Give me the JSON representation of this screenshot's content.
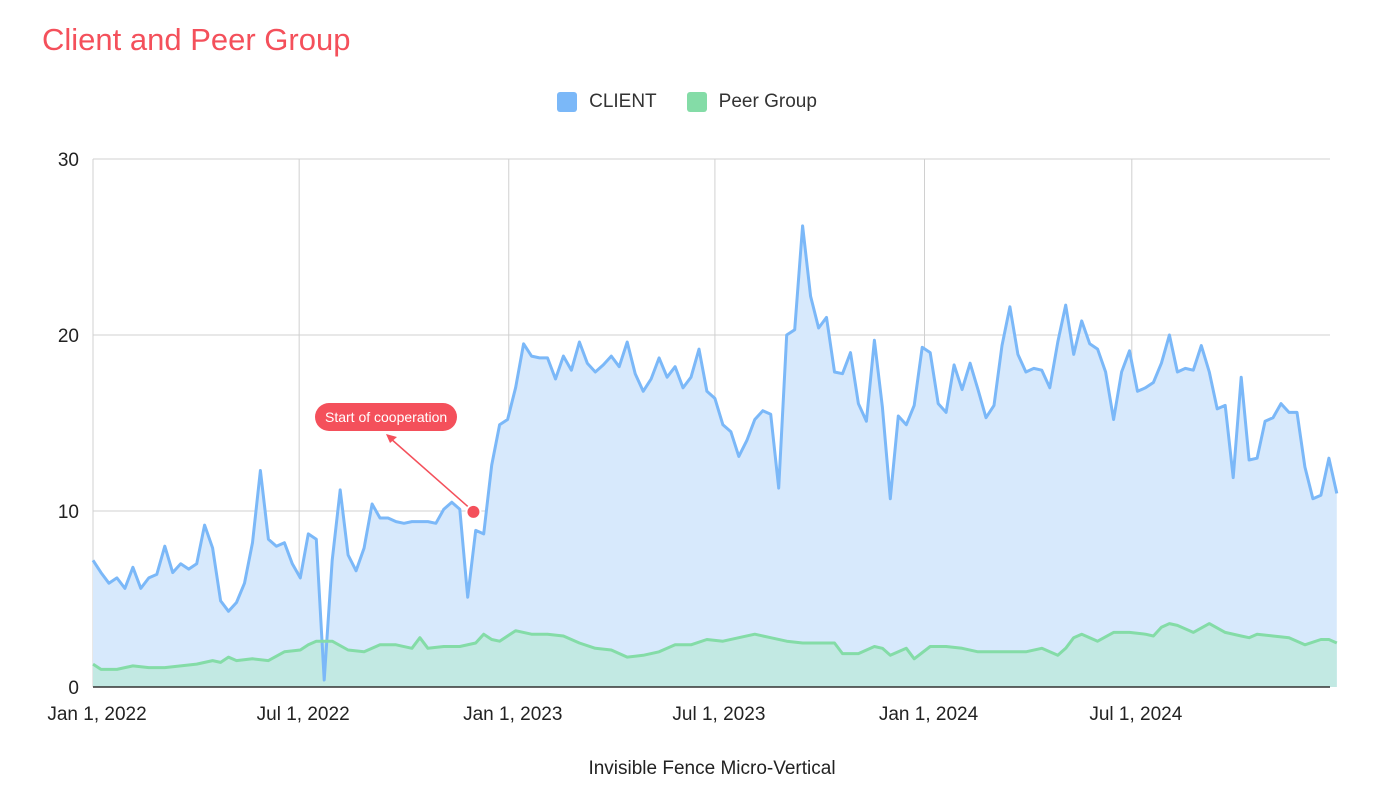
{
  "chart_data": {
    "type": "area",
    "title": "Client and Peer Group",
    "xlabel": "Invisible Fence Micro-Vertical",
    "ylabel": "",
    "ylim": [
      0,
      30
    ],
    "yticks": [
      0,
      10,
      20,
      30
    ],
    "x_range": [
      "2022-01-01",
      "2024-12-22"
    ],
    "xticks": [
      {
        "date": "2022-01-01",
        "label": "Jan 1, 2022"
      },
      {
        "date": "2022-07-01",
        "label": "Jul 1, 2022"
      },
      {
        "date": "2023-01-01",
        "label": "Jan 1, 2023"
      },
      {
        "date": "2023-07-01",
        "label": "Jul 1, 2023"
      },
      {
        "date": "2024-01-01",
        "label": "Jan 1, 2024"
      },
      {
        "date": "2024-07-01",
        "label": "Jul 1, 2024"
      }
    ],
    "grid": true,
    "legend_position": "top-center",
    "series": [
      {
        "name": "CLIENT",
        "color": "#7bb8f8",
        "fill": "#d7e9fc",
        "points": [
          [
            "2022-01-01",
            7.2
          ],
          [
            "2022-01-08",
            6.5
          ],
          [
            "2022-01-15",
            5.9
          ],
          [
            "2022-01-22",
            6.2
          ],
          [
            "2022-01-29",
            5.6
          ],
          [
            "2022-02-05",
            6.8
          ],
          [
            "2022-02-12",
            5.6
          ],
          [
            "2022-02-19",
            6.2
          ],
          [
            "2022-02-26",
            6.4
          ],
          [
            "2022-03-05",
            8.0
          ],
          [
            "2022-03-12",
            6.5
          ],
          [
            "2022-03-19",
            7.0
          ],
          [
            "2022-03-26",
            6.7
          ],
          [
            "2022-04-02",
            7.0
          ],
          [
            "2022-04-09",
            9.2
          ],
          [
            "2022-04-16",
            7.9
          ],
          [
            "2022-04-23",
            4.9
          ],
          [
            "2022-04-30",
            4.3
          ],
          [
            "2022-05-07",
            4.8
          ],
          [
            "2022-05-14",
            5.9
          ],
          [
            "2022-05-21",
            8.2
          ],
          [
            "2022-05-28",
            12.3
          ],
          [
            "2022-06-04",
            8.4
          ],
          [
            "2022-06-11",
            8.0
          ],
          [
            "2022-06-18",
            8.2
          ],
          [
            "2022-06-25",
            7.0
          ],
          [
            "2022-07-02",
            6.2
          ],
          [
            "2022-07-09",
            8.7
          ],
          [
            "2022-07-16",
            8.4
          ],
          [
            "2022-07-23",
            0.4
          ],
          [
            "2022-07-30",
            7.2
          ],
          [
            "2022-08-06",
            11.2
          ],
          [
            "2022-08-13",
            7.5
          ],
          [
            "2022-08-20",
            6.6
          ],
          [
            "2022-08-27",
            7.9
          ],
          [
            "2022-09-03",
            10.4
          ],
          [
            "2022-09-10",
            9.6
          ],
          [
            "2022-09-17",
            9.6
          ],
          [
            "2022-09-24",
            9.4
          ],
          [
            "2022-10-01",
            9.3
          ],
          [
            "2022-10-08",
            9.4
          ],
          [
            "2022-10-15",
            9.4
          ],
          [
            "2022-10-22",
            9.4
          ],
          [
            "2022-10-29",
            9.3
          ],
          [
            "2022-11-05",
            10.1
          ],
          [
            "2022-11-12",
            10.5
          ],
          [
            "2022-11-19",
            10.1
          ],
          [
            "2022-11-26",
            5.1
          ],
          [
            "2022-12-03",
            8.9
          ],
          [
            "2022-12-10",
            8.7
          ],
          [
            "2022-12-17",
            12.6
          ],
          [
            "2022-12-24",
            14.9
          ],
          [
            "2022-12-31",
            15.2
          ],
          [
            "2023-01-07",
            17.0
          ],
          [
            "2023-01-14",
            19.5
          ],
          [
            "2023-01-21",
            18.8
          ],
          [
            "2023-01-28",
            18.7
          ],
          [
            "2023-02-04",
            18.7
          ],
          [
            "2023-02-11",
            17.5
          ],
          [
            "2023-02-18",
            18.8
          ],
          [
            "2023-02-25",
            18.0
          ],
          [
            "2023-03-04",
            19.6
          ],
          [
            "2023-03-11",
            18.4
          ],
          [
            "2023-03-18",
            17.9
          ],
          [
            "2023-03-25",
            18.3
          ],
          [
            "2023-04-01",
            18.8
          ],
          [
            "2023-04-08",
            18.2
          ],
          [
            "2023-04-15",
            19.6
          ],
          [
            "2023-04-22",
            17.8
          ],
          [
            "2023-04-29",
            16.8
          ],
          [
            "2023-05-06",
            17.5
          ],
          [
            "2023-05-13",
            18.7
          ],
          [
            "2023-05-20",
            17.6
          ],
          [
            "2023-05-27",
            18.2
          ],
          [
            "2023-06-03",
            17.0
          ],
          [
            "2023-06-10",
            17.6
          ],
          [
            "2023-06-17",
            19.2
          ],
          [
            "2023-06-24",
            16.8
          ],
          [
            "2023-07-01",
            16.4
          ],
          [
            "2023-07-08",
            14.9
          ],
          [
            "2023-07-15",
            14.5
          ],
          [
            "2023-07-22",
            13.1
          ],
          [
            "2023-07-29",
            14.0
          ],
          [
            "2023-08-05",
            15.2
          ],
          [
            "2023-08-12",
            15.7
          ],
          [
            "2023-08-19",
            15.5
          ],
          [
            "2023-08-26",
            11.3
          ],
          [
            "2023-09-02",
            20.0
          ],
          [
            "2023-09-09",
            20.3
          ],
          [
            "2023-09-16",
            26.2
          ],
          [
            "2023-09-23",
            22.2
          ],
          [
            "2023-09-30",
            20.4
          ],
          [
            "2023-10-07",
            21.0
          ],
          [
            "2023-10-14",
            17.9
          ],
          [
            "2023-10-21",
            17.8
          ],
          [
            "2023-10-28",
            19.0
          ],
          [
            "2023-11-04",
            16.1
          ],
          [
            "2023-11-11",
            15.1
          ],
          [
            "2023-11-18",
            19.7
          ],
          [
            "2023-11-25",
            15.9
          ],
          [
            "2023-12-02",
            10.7
          ],
          [
            "2023-12-09",
            15.4
          ],
          [
            "2023-12-16",
            14.9
          ],
          [
            "2023-12-23",
            16.0
          ],
          [
            "2023-12-30",
            19.3
          ],
          [
            "2024-01-06",
            19.0
          ],
          [
            "2024-01-13",
            16.1
          ],
          [
            "2024-01-20",
            15.6
          ],
          [
            "2024-01-27",
            18.3
          ],
          [
            "2024-02-03",
            16.9
          ],
          [
            "2024-02-10",
            18.4
          ],
          [
            "2024-02-17",
            16.9
          ],
          [
            "2024-02-24",
            15.3
          ],
          [
            "2024-03-02",
            16.0
          ],
          [
            "2024-03-09",
            19.4
          ],
          [
            "2024-03-16",
            21.6
          ],
          [
            "2024-03-23",
            18.9
          ],
          [
            "2024-03-30",
            17.9
          ],
          [
            "2024-04-06",
            18.1
          ],
          [
            "2024-04-13",
            18.0
          ],
          [
            "2024-04-20",
            17.0
          ],
          [
            "2024-04-27",
            19.6
          ],
          [
            "2024-05-04",
            21.7
          ],
          [
            "2024-05-11",
            18.9
          ],
          [
            "2024-05-18",
            20.8
          ],
          [
            "2024-05-25",
            19.5
          ],
          [
            "2024-06-01",
            19.2
          ],
          [
            "2024-06-08",
            17.9
          ],
          [
            "2024-06-15",
            15.2
          ],
          [
            "2024-06-22",
            17.9
          ],
          [
            "2024-06-29",
            19.1
          ],
          [
            "2024-07-06",
            16.8
          ],
          [
            "2024-07-13",
            17.0
          ],
          [
            "2024-07-20",
            17.3
          ],
          [
            "2024-07-27",
            18.4
          ],
          [
            "2024-08-03",
            20.0
          ],
          [
            "2024-08-10",
            17.9
          ],
          [
            "2024-08-17",
            18.1
          ],
          [
            "2024-08-24",
            18.0
          ],
          [
            "2024-08-31",
            19.4
          ],
          [
            "2024-09-07",
            17.9
          ],
          [
            "2024-09-14",
            15.8
          ],
          [
            "2024-09-21",
            16.0
          ],
          [
            "2024-09-28",
            11.9
          ],
          [
            "2024-10-05",
            17.6
          ],
          [
            "2024-10-12",
            12.9
          ],
          [
            "2024-10-19",
            13.0
          ],
          [
            "2024-10-26",
            15.1
          ],
          [
            "2024-11-02",
            15.3
          ],
          [
            "2024-11-09",
            16.1
          ],
          [
            "2024-11-16",
            15.6
          ],
          [
            "2024-11-23",
            15.6
          ],
          [
            "2024-11-30",
            12.5
          ],
          [
            "2024-12-07",
            10.7
          ],
          [
            "2024-12-14",
            10.9
          ],
          [
            "2024-12-21",
            13.0
          ],
          [
            "2024-12-28",
            11.0
          ]
        ]
      },
      {
        "name": "Peer Group",
        "color": "#84dca7",
        "fill": "#c2e9e3",
        "points": [
          [
            "2022-01-01",
            1.3
          ],
          [
            "2022-01-08",
            1.0
          ],
          [
            "2022-01-22",
            1.0
          ],
          [
            "2022-02-05",
            1.2
          ],
          [
            "2022-02-19",
            1.1
          ],
          [
            "2022-03-05",
            1.1
          ],
          [
            "2022-03-19",
            1.2
          ],
          [
            "2022-04-02",
            1.3
          ],
          [
            "2022-04-16",
            1.5
          ],
          [
            "2022-04-23",
            1.4
          ],
          [
            "2022-04-30",
            1.7
          ],
          [
            "2022-05-07",
            1.5
          ],
          [
            "2022-05-21",
            1.6
          ],
          [
            "2022-06-04",
            1.5
          ],
          [
            "2022-06-18",
            2.0
          ],
          [
            "2022-07-02",
            2.1
          ],
          [
            "2022-07-09",
            2.4
          ],
          [
            "2022-07-16",
            2.6
          ],
          [
            "2022-07-30",
            2.6
          ],
          [
            "2022-08-13",
            2.1
          ],
          [
            "2022-08-27",
            2.0
          ],
          [
            "2022-09-10",
            2.4
          ],
          [
            "2022-09-24",
            2.4
          ],
          [
            "2022-10-08",
            2.2
          ],
          [
            "2022-10-15",
            2.8
          ],
          [
            "2022-10-22",
            2.2
          ],
          [
            "2022-11-05",
            2.3
          ],
          [
            "2022-11-19",
            2.3
          ],
          [
            "2022-12-03",
            2.5
          ],
          [
            "2022-12-10",
            3.0
          ],
          [
            "2022-12-17",
            2.7
          ],
          [
            "2022-12-24",
            2.6
          ],
          [
            "2023-01-07",
            3.2
          ],
          [
            "2023-01-21",
            3.0
          ],
          [
            "2023-02-04",
            3.0
          ],
          [
            "2023-02-18",
            2.9
          ],
          [
            "2023-03-04",
            2.5
          ],
          [
            "2023-03-18",
            2.2
          ],
          [
            "2023-04-01",
            2.1
          ],
          [
            "2023-04-15",
            1.7
          ],
          [
            "2023-04-29",
            1.8
          ],
          [
            "2023-05-13",
            2.0
          ],
          [
            "2023-05-27",
            2.4
          ],
          [
            "2023-06-10",
            2.4
          ],
          [
            "2023-06-24",
            2.7
          ],
          [
            "2023-07-08",
            2.6
          ],
          [
            "2023-07-22",
            2.8
          ],
          [
            "2023-08-05",
            3.0
          ],
          [
            "2023-08-19",
            2.8
          ],
          [
            "2023-09-02",
            2.6
          ],
          [
            "2023-09-16",
            2.5
          ],
          [
            "2023-10-14",
            2.5
          ],
          [
            "2023-10-21",
            1.9
          ],
          [
            "2023-11-04",
            1.9
          ],
          [
            "2023-11-18",
            2.3
          ],
          [
            "2023-11-25",
            2.2
          ],
          [
            "2023-12-02",
            1.8
          ],
          [
            "2023-12-16",
            2.2
          ],
          [
            "2023-12-23",
            1.6
          ],
          [
            "2024-01-06",
            2.3
          ],
          [
            "2024-01-20",
            2.3
          ],
          [
            "2024-02-03",
            2.2
          ],
          [
            "2024-02-17",
            2.0
          ],
          [
            "2024-03-02",
            2.0
          ],
          [
            "2024-03-16",
            2.0
          ],
          [
            "2024-03-30",
            2.0
          ],
          [
            "2024-04-13",
            2.2
          ],
          [
            "2024-04-20",
            2.0
          ],
          [
            "2024-04-27",
            1.8
          ],
          [
            "2024-05-04",
            2.2
          ],
          [
            "2024-05-11",
            2.8
          ],
          [
            "2024-05-18",
            3.0
          ],
          [
            "2024-06-01",
            2.6
          ],
          [
            "2024-06-15",
            3.1
          ],
          [
            "2024-06-29",
            3.1
          ],
          [
            "2024-07-13",
            3.0
          ],
          [
            "2024-07-20",
            2.9
          ],
          [
            "2024-07-27",
            3.4
          ],
          [
            "2024-08-03",
            3.6
          ],
          [
            "2024-08-10",
            3.5
          ],
          [
            "2024-08-24",
            3.1
          ],
          [
            "2024-09-07",
            3.6
          ],
          [
            "2024-09-21",
            3.1
          ],
          [
            "2024-10-05",
            2.9
          ],
          [
            "2024-10-12",
            2.8
          ],
          [
            "2024-10-19",
            3.0
          ],
          [
            "2024-11-02",
            2.9
          ],
          [
            "2024-11-16",
            2.8
          ],
          [
            "2024-11-30",
            2.4
          ],
          [
            "2024-12-14",
            2.7
          ],
          [
            "2024-12-21",
            2.7
          ],
          [
            "2024-12-28",
            2.5
          ]
        ]
      }
    ],
    "annotations": [
      {
        "text": "Start of cooperation",
        "x": "2022-12-01",
        "y": 9.95,
        "color": "#f4505b"
      }
    ]
  }
}
